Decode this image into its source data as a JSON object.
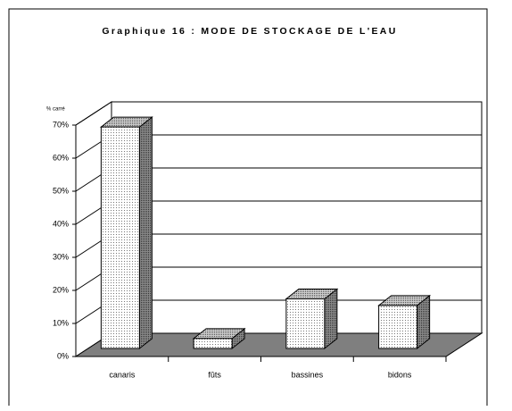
{
  "chart_data": {
    "type": "bar3d",
    "title": "Graphique 16 : MODE DE STOCKAGE DE L'EAU",
    "y_axis_label": "% carré",
    "categories": [
      "canaris",
      "fûts",
      "bassines",
      "bidons"
    ],
    "values": [
      67,
      3,
      15,
      13
    ],
    "ylim": [
      0,
      70
    ],
    "yticks": [
      {
        "value": 0,
        "label": "0%"
      },
      {
        "value": 10,
        "label": "10%"
      },
      {
        "value": 20,
        "label": "20%"
      },
      {
        "value": 30,
        "label": "30%"
      },
      {
        "value": 40,
        "label": "40%"
      },
      {
        "value": 50,
        "label": "50%"
      },
      {
        "value": 60,
        "label": "60%"
      },
      {
        "value": 70,
        "label": "70%"
      }
    ],
    "grid": true,
    "color": "#ffffff",
    "floor_color": "#7f7f7f"
  }
}
